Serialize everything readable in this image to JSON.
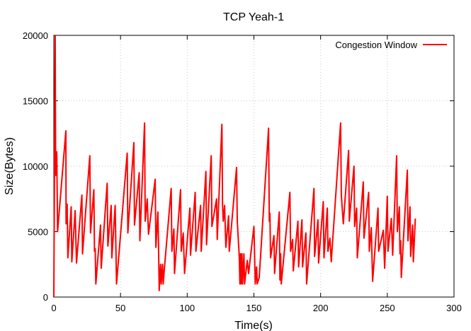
{
  "chart_data": {
    "type": "line",
    "title": "TCP Yeah-1",
    "xlabel": "Time(s)",
    "ylabel": "Size(Bytes)",
    "xlim": [
      0,
      300
    ],
    "ylim": [
      0,
      20000
    ],
    "xticks": [
      0,
      50,
      100,
      150,
      200,
      250,
      300
    ],
    "yticks": [
      0,
      5000,
      10000,
      15000,
      20000
    ],
    "grid": true,
    "legend_position": "top-right",
    "series": [
      {
        "name": "Congestion Window",
        "color": "#ff0000",
        "points": [
          [
            0,
            0
          ],
          [
            1,
            20000
          ],
          [
            1.4,
            9300
          ],
          [
            2.2,
            11100
          ],
          [
            2.8,
            5000
          ],
          [
            9,
            12700
          ],
          [
            9.2,
            5600
          ],
          [
            10,
            7100
          ],
          [
            10.5,
            3000
          ],
          [
            13,
            6900
          ],
          [
            13.5,
            2700
          ],
          [
            16,
            6600
          ],
          [
            17,
            2600
          ],
          [
            21,
            7800
          ],
          [
            21.5,
            3300
          ],
          [
            27,
            10800
          ],
          [
            27.5,
            4900
          ],
          [
            30,
            8200
          ],
          [
            30.5,
            3500
          ],
          [
            31,
            3700
          ],
          [
            31.5,
            1000
          ],
          [
            35,
            5500
          ],
          [
            35.5,
            2200
          ],
          [
            40,
            8700
          ],
          [
            40.5,
            3900
          ],
          [
            43,
            7000
          ],
          [
            43.5,
            3000
          ],
          [
            46,
            7000
          ],
          [
            47,
            1000
          ],
          [
            55,
            11000
          ],
          [
            55.5,
            4900
          ],
          [
            60,
            11800
          ],
          [
            60.5,
            5500
          ],
          [
            64,
            9500
          ],
          [
            64.5,
            4300
          ],
          [
            68,
            13300
          ],
          [
            68.5,
            5800
          ],
          [
            70,
            7500
          ],
          [
            71,
            4800
          ],
          [
            76,
            9000
          ],
          [
            76.5,
            3800
          ],
          [
            78,
            6500
          ],
          [
            78.5,
            4000
          ],
          [
            79,
            500
          ],
          [
            80,
            2500
          ],
          [
            80.5,
            1000
          ],
          [
            81.5,
            2500
          ],
          [
            82,
            1000
          ],
          [
            83,
            2300
          ],
          [
            88,
            8300
          ],
          [
            88.5,
            3500
          ],
          [
            90,
            5200
          ],
          [
            90.5,
            1800
          ],
          [
            95,
            8200
          ],
          [
            95.5,
            3500
          ],
          [
            97,
            4900
          ],
          [
            98,
            1800
          ],
          [
            102,
            6800
          ],
          [
            102.5,
            3200
          ],
          [
            106,
            8000
          ],
          [
            106.5,
            3500
          ],
          [
            110,
            7000
          ],
          [
            110.5,
            3500
          ],
          [
            114,
            9600
          ],
          [
            114.5,
            4000
          ],
          [
            118,
            10800
          ],
          [
            118.5,
            5400
          ],
          [
            122,
            7500
          ],
          [
            122.5,
            4400
          ],
          [
            126,
            13200
          ],
          [
            126.5,
            7000
          ],
          [
            127,
            5800
          ],
          [
            128,
            7000
          ],
          [
            129,
            3800
          ],
          [
            131,
            6200
          ],
          [
            131.5,
            3500
          ],
          [
            137,
            9900
          ],
          [
            137.5,
            5800
          ],
          [
            139,
            3100
          ],
          [
            139.5,
            1000
          ],
          [
            140,
            3300
          ],
          [
            140.5,
            1000
          ],
          [
            141,
            3300
          ],
          [
            141.5,
            1000
          ],
          [
            142.5,
            3300
          ],
          [
            143,
            1000
          ],
          [
            145,
            2800
          ],
          [
            146,
            1800
          ],
          [
            150,
            5400
          ],
          [
            151,
            1000
          ],
          [
            152,
            2300
          ],
          [
            152.5,
            1000
          ],
          [
            154,
            1500
          ],
          [
            161,
            12900
          ],
          [
            161.5,
            5800
          ],
          [
            162,
            6400
          ],
          [
            162.5,
            3000
          ],
          [
            165,
            4700
          ],
          [
            165.5,
            1800
          ],
          [
            169,
            6500
          ],
          [
            169.5,
            1300
          ],
          [
            170,
            3300
          ],
          [
            170.5,
            1000
          ],
          [
            177,
            8000
          ],
          [
            177.5,
            3500
          ],
          [
            179,
            4400
          ],
          [
            179.5,
            2000
          ],
          [
            183,
            5800
          ],
          [
            183.5,
            2300
          ],
          [
            186,
            5900
          ],
          [
            186.5,
            2300
          ],
          [
            189,
            4900
          ],
          [
            189.5,
            1000
          ],
          [
            195,
            8300
          ],
          [
            195.5,
            3100
          ],
          [
            198,
            5900
          ],
          [
            198.5,
            2600
          ],
          [
            202,
            7300
          ],
          [
            202.5,
            3000
          ],
          [
            205,
            6800
          ],
          [
            205.5,
            3500
          ],
          [
            207,
            4500
          ],
          [
            208,
            2700
          ],
          [
            215,
            13300
          ],
          [
            215.5,
            7800
          ],
          [
            217,
            5600
          ],
          [
            221,
            11200
          ],
          [
            221.5,
            5800
          ],
          [
            225,
            10000
          ],
          [
            225.5,
            5400
          ],
          [
            227,
            6800
          ],
          [
            227.5,
            3000
          ],
          [
            232,
            8800
          ],
          [
            232.5,
            4500
          ],
          [
            236,
            8000
          ],
          [
            236.5,
            3500
          ],
          [
            238,
            5300
          ],
          [
            239,
            1200
          ],
          [
            243,
            6800
          ],
          [
            243.5,
            3500
          ],
          [
            247,
            5100
          ],
          [
            248,
            2200
          ],
          [
            250,
            7700
          ],
          [
            250.5,
            3500
          ],
          [
            253,
            6000
          ],
          [
            254,
            3200
          ],
          [
            257,
            10800
          ],
          [
            257.5,
            5000
          ],
          [
            259,
            6900
          ],
          [
            259.5,
            3300
          ],
          [
            260,
            4300
          ],
          [
            260.5,
            1500
          ],
          [
            265,
            9700
          ],
          [
            265.5,
            4300
          ],
          [
            267,
            6900
          ],
          [
            267.5,
            3100
          ],
          [
            269,
            5500
          ],
          [
            269.5,
            2700
          ],
          [
            271,
            6000
          ]
        ]
      }
    ]
  }
}
